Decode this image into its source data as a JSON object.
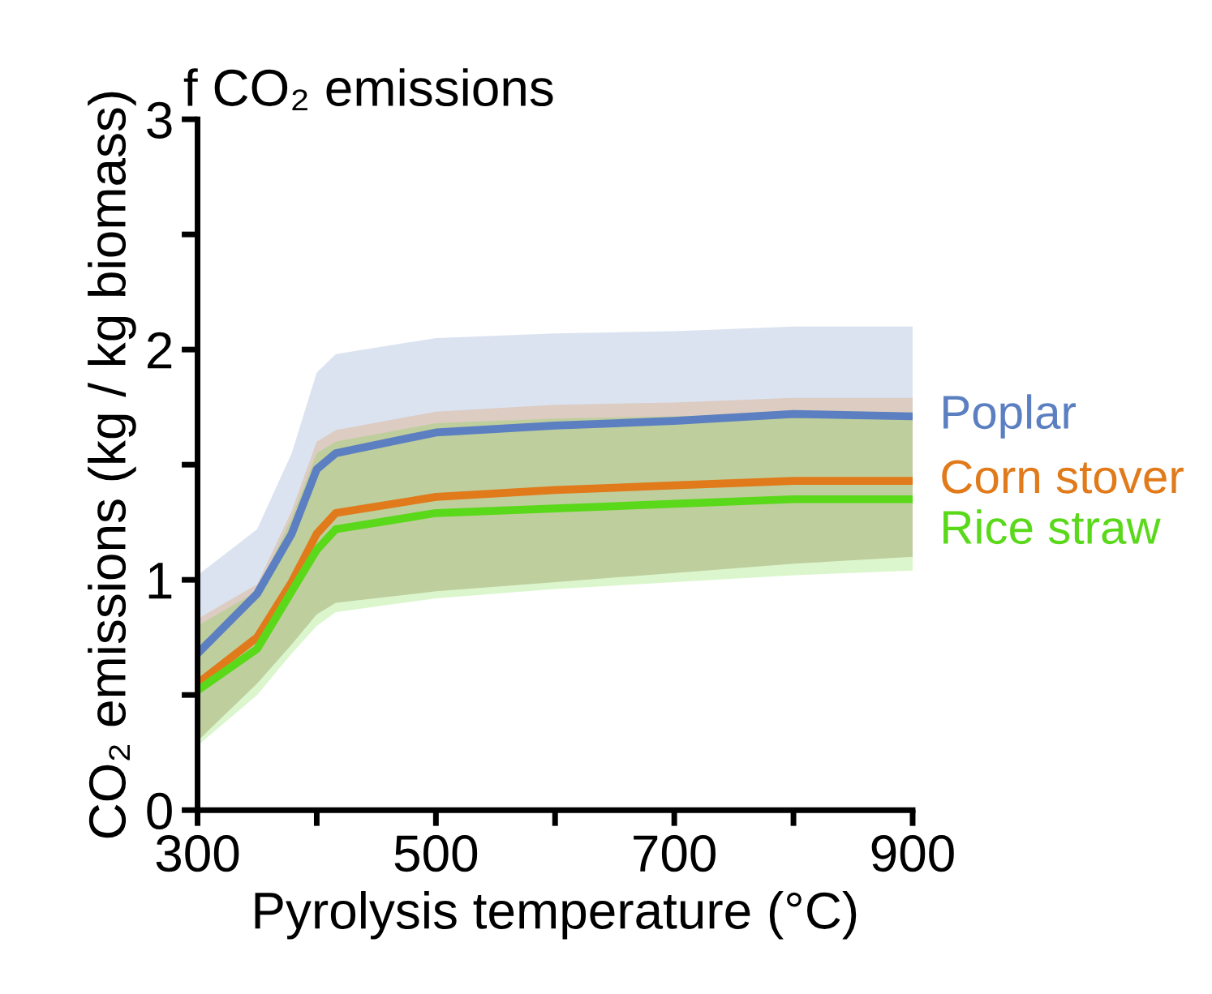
{
  "chart_data": {
    "type": "line",
    "title": "f CO₂ emissions",
    "xlabel": "Pyrolysis temperature (°C)",
    "ylabel": "CO₂ emissions (kg / kg biomass)",
    "x": [
      300,
      350,
      379,
      400,
      416,
      500,
      600,
      700,
      800,
      900
    ],
    "series": [
      {
        "name": "Poplar",
        "color": "#5b7fc0",
        "values": [
          0.68,
          0.94,
          1.2,
          1.48,
          1.55,
          1.64,
          1.67,
          1.69,
          1.72,
          1.71
        ],
        "lower": [
          0.3,
          0.55,
          0.72,
          0.85,
          0.9,
          0.95,
          0.99,
          1.03,
          1.07,
          1.1
        ],
        "upper": [
          1.02,
          1.22,
          1.55,
          1.9,
          1.98,
          2.05,
          2.07,
          2.08,
          2.1,
          2.1
        ]
      },
      {
        "name": "Corn stover",
        "color": "#e07a1a",
        "values": [
          0.55,
          0.75,
          0.99,
          1.2,
          1.29,
          1.36,
          1.39,
          1.41,
          1.43,
          1.43
        ],
        "lower": [
          0.3,
          0.55,
          0.72,
          0.85,
          0.9,
          0.95,
          0.99,
          1.03,
          1.07,
          1.1
        ],
        "upper": [
          0.83,
          0.98,
          1.3,
          1.6,
          1.65,
          1.73,
          1.76,
          1.77,
          1.79,
          1.79
        ]
      },
      {
        "name": "Rice straw",
        "color": "#5ad81a",
        "values": [
          0.52,
          0.7,
          0.95,
          1.13,
          1.22,
          1.29,
          1.31,
          1.33,
          1.35,
          1.35
        ],
        "lower": [
          0.28,
          0.5,
          0.68,
          0.8,
          0.86,
          0.92,
          0.96,
          0.99,
          1.02,
          1.04
        ],
        "upper": [
          0.8,
          0.95,
          1.27,
          1.55,
          1.6,
          1.68,
          1.7,
          1.71,
          1.72,
          1.72
        ]
      }
    ],
    "xlim": [
      300,
      900
    ],
    "ylim": [
      0,
      3
    ],
    "xticks": [
      300,
      {
        "value": 400,
        "label": null
      },
      500,
      {
        "value": 600,
        "label": null
      },
      700,
      {
        "value": 800,
        "label": null
      },
      900
    ],
    "yticks": [
      0,
      {
        "value": 0.5,
        "label": null
      },
      1,
      {
        "value": 1.5,
        "label": null
      },
      2,
      {
        "value": 2.5,
        "label": null
      },
      3
    ],
    "grid": false,
    "legend": false
  }
}
